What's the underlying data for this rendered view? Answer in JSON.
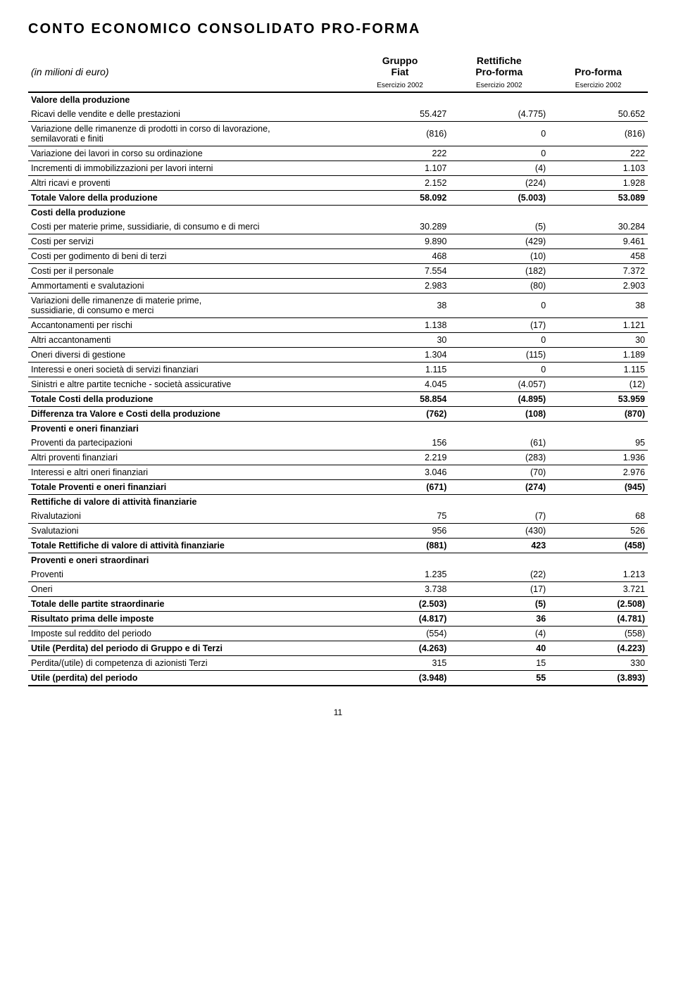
{
  "title": "CONTO ECONOMICO CONSOLIDATO PRO-FORMA",
  "header": {
    "row_label": "(in milioni di euro)",
    "col1": "Gruppo\nFiat",
    "col2": "Rettifiche\nPro-forma",
    "col3": "Pro-forma",
    "sub1": "Esercizio 2002",
    "sub2": "Esercizio 2002",
    "sub3": "Esercizio 2002"
  },
  "rows": [
    {
      "label": "Valore della produzione",
      "v": [
        "",
        "",
        ""
      ],
      "cls": "row-section"
    },
    {
      "label": "Ricavi delle vendite e delle prestazioni",
      "v": [
        "55.427",
        "(4.775)",
        "50.652"
      ],
      "cls": "bb"
    },
    {
      "label": "Variazione delle rimanenze di prodotti in corso di lavorazione,\nsemilavorati e finiti",
      "v": [
        "(816)",
        "0",
        "(816)"
      ],
      "cls": "bb"
    },
    {
      "label": "Variazione dei lavori in corso su ordinazione",
      "v": [
        "222",
        "0",
        "222"
      ],
      "cls": "bb"
    },
    {
      "label": "Incrementi di immobilizzazioni per lavori interni",
      "v": [
        "1.107",
        "(4)",
        "1.103"
      ],
      "cls": "bb"
    },
    {
      "label": "Altri ricavi e proventi",
      "v": [
        "2.152",
        "(224)",
        "1.928"
      ],
      "cls": "bb"
    },
    {
      "label": "Totale Valore della produzione",
      "v": [
        "58.092",
        "(5.003)",
        "53.089"
      ],
      "cls": "row-bold bb"
    },
    {
      "label": "Costi della produzione",
      "v": [
        "",
        "",
        ""
      ],
      "cls": "row-section"
    },
    {
      "label": "Costi per materie prime, sussidiarie, di consumo e di merci",
      "v": [
        "30.289",
        "(5)",
        "30.284"
      ],
      "cls": "bb"
    },
    {
      "label": "Costi per servizi",
      "v": [
        "9.890",
        "(429)",
        "9.461"
      ],
      "cls": "bb"
    },
    {
      "label": "Costi per godimento di beni di terzi",
      "v": [
        "468",
        "(10)",
        "458"
      ],
      "cls": "bb"
    },
    {
      "label": "Costi per il personale",
      "v": [
        "7.554",
        "(182)",
        "7.372"
      ],
      "cls": "bb"
    },
    {
      "label": "Ammortamenti e svalutazioni",
      "v": [
        "2.983",
        "(80)",
        "2.903"
      ],
      "cls": "bb"
    },
    {
      "label": "Variazioni delle rimanenze di materie prime,\nsussidiarie, di consumo e merci",
      "v": [
        "38",
        "0",
        "38"
      ],
      "cls": "bb"
    },
    {
      "label": "Accantonamenti per rischi",
      "v": [
        "1.138",
        "(17)",
        "1.121"
      ],
      "cls": "bb"
    },
    {
      "label": "Altri accantonamenti",
      "v": [
        "30",
        "0",
        "30"
      ],
      "cls": "bb"
    },
    {
      "label": "Oneri diversi di gestione",
      "v": [
        "1.304",
        "(115)",
        "1.189"
      ],
      "cls": "bb"
    },
    {
      "label": "Interessi e oneri società di servizi finanziari",
      "v": [
        "1.115",
        "0",
        "1.115"
      ],
      "cls": "bb"
    },
    {
      "label": "Sinistri e altre partite tecniche - società assicurative",
      "v": [
        "4.045",
        "(4.057)",
        "(12)"
      ],
      "cls": "bb"
    },
    {
      "label": "Totale Costi della produzione",
      "v": [
        "58.854",
        "(4.895)",
        "53.959"
      ],
      "cls": "row-bold bb"
    },
    {
      "label": "Differenza tra Valore e Costi della produzione",
      "v": [
        "(762)",
        "(108)",
        "(870)"
      ],
      "cls": "row-bold bb"
    },
    {
      "label": "Proventi e oneri finanziari",
      "v": [
        "",
        "",
        ""
      ],
      "cls": "row-section"
    },
    {
      "label": "Proventi da partecipazioni",
      "v": [
        "156",
        "(61)",
        "95"
      ],
      "cls": "bb"
    },
    {
      "label": "Altri proventi finanziari",
      "v": [
        "2.219",
        "(283)",
        "1.936"
      ],
      "cls": "bb"
    },
    {
      "label": "Interessi e altri oneri finanziari",
      "v": [
        "3.046",
        "(70)",
        "2.976"
      ],
      "cls": "bb"
    },
    {
      "label": "Totale Proventi e oneri finanziari",
      "v": [
        "(671)",
        "(274)",
        "(945)"
      ],
      "cls": "row-bold bb"
    },
    {
      "label": "Rettifiche di valore di attività finanziarie",
      "v": [
        "",
        "",
        ""
      ],
      "cls": "row-section"
    },
    {
      "label": "Rivalutazioni",
      "v": [
        "75",
        "(7)",
        "68"
      ],
      "cls": "bb"
    },
    {
      "label": "Svalutazioni",
      "v": [
        "956",
        "(430)",
        "526"
      ],
      "cls": "bb"
    },
    {
      "label": "Totale Rettifiche di valore di attività finanziarie",
      "v": [
        "(881)",
        "423",
        "(458)"
      ],
      "cls": "row-bold bb"
    },
    {
      "label": "Proventi e oneri straordinari",
      "v": [
        "",
        "",
        ""
      ],
      "cls": "row-section"
    },
    {
      "label": "Proventi",
      "v": [
        "1.235",
        "(22)",
        "1.213"
      ],
      "cls": "bb"
    },
    {
      "label": "Oneri",
      "v": [
        "3.738",
        "(17)",
        "3.721"
      ],
      "cls": "bb"
    },
    {
      "label": "Totale delle partite straordinarie",
      "v": [
        "(2.503)",
        "(5)",
        "(2.508)"
      ],
      "cls": "row-bold bb"
    },
    {
      "label": "Risultato prima delle imposte",
      "v": [
        "(4.817)",
        "36",
        "(4.781)"
      ],
      "cls": "row-bold bb"
    },
    {
      "label": "Imposte sul reddito del periodo",
      "v": [
        "(554)",
        "(4)",
        "(558)"
      ],
      "cls": "bb"
    },
    {
      "label": "Utile (Perdita) del periodo di Gruppo e di Terzi",
      "v": [
        "(4.263)",
        "40",
        "(4.223)"
      ],
      "cls": "row-bold bb"
    },
    {
      "label": "Perdita/(utile) di competenza di azionisti Terzi",
      "v": [
        "315",
        "15",
        "330"
      ],
      "cls": "bb"
    },
    {
      "label": "Utile (perdita) del periodo",
      "v": [
        "(3.948)",
        "55",
        "(3.893)"
      ],
      "cls": "row-bold bb2"
    }
  ],
  "pagenum": "11",
  "styling": {
    "font_family": "Arial",
    "title_fontsize": 20,
    "body_fontsize": 12.5,
    "sub_fontsize": 10,
    "text_color": "#000000",
    "background_color": "#ffffff",
    "border_color": "#000000"
  }
}
